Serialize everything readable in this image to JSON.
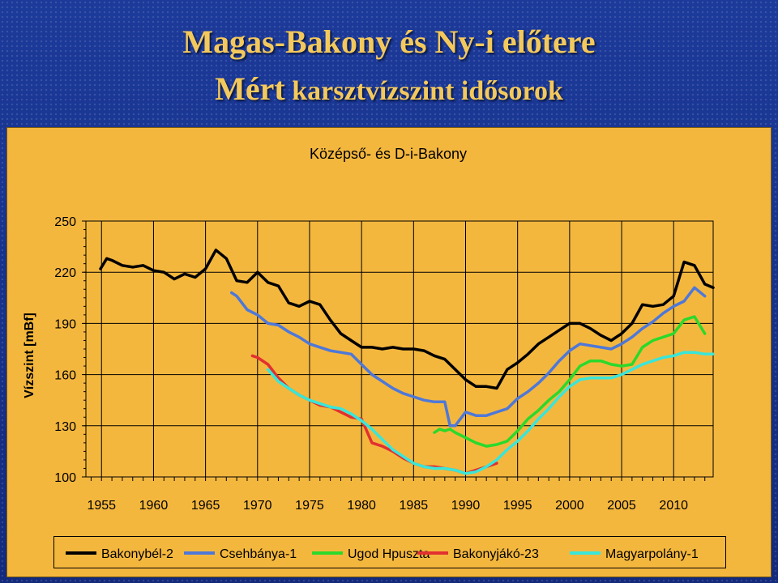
{
  "slide": {
    "title_line1": "Magas-Bakony és Ny-i előtere",
    "title_line2_strong": "Mért",
    "title_line2_rest": " karsztvízszint idősorok"
  },
  "chart_data": {
    "type": "line",
    "title": "Középső- és D-i-Bakony",
    "ylabel": "Vízszint [mBf]",
    "xlabel": "",
    "xlim": [
      1953.5,
      2013.8
    ],
    "ylim": [
      100,
      250
    ],
    "x_ticks": [
      "1955",
      "1960",
      "1965",
      "1970",
      "1975",
      "1980",
      "1985",
      "1990",
      "1995",
      "2000",
      "2005",
      "2010"
    ],
    "y_ticks": [
      "250",
      "220",
      "190",
      "160",
      "130",
      "100"
    ],
    "grid": true,
    "legend_position": "bottom",
    "series": [
      {
        "name": "Bakonybél-2",
        "color": "#000000",
        "x": [
          1954.9,
          1955.5,
          1956,
          1957,
          1958,
          1959,
          1960,
          1961,
          1962,
          1963,
          1964,
          1965,
          1966,
          1967,
          1968,
          1969,
          1970,
          1971,
          1972,
          1973,
          1974,
          1975,
          1976,
          1977,
          1978,
          1979,
          1980,
          1981,
          1982,
          1983,
          1984,
          1985,
          1986,
          1987,
          1988,
          1989,
          1990,
          1991,
          1992,
          1993,
          1994,
          1995,
          1996,
          1997,
          1998,
          1999,
          2000,
          2001,
          2002,
          2003,
          2004,
          2005,
          2006,
          2007,
          2008,
          2009,
          2010,
          2011,
          2012,
          2013,
          2013.8
        ],
        "y": [
          222,
          228,
          227,
          224,
          223,
          224,
          221,
          220,
          216,
          219,
          217,
          222,
          233,
          228,
          215,
          214,
          220,
          214,
          212,
          202,
          200,
          203,
          201,
          192,
          184,
          180,
          176,
          176,
          175,
          176,
          175,
          175,
          174,
          171,
          169,
          163,
          157,
          153,
          153,
          152,
          163,
          167,
          172,
          178,
          182,
          186,
          190,
          190,
          187,
          183,
          180,
          184,
          190,
          201,
          200,
          201,
          206,
          226,
          224,
          213,
          211
        ]
      },
      {
        "name": "Csehbánya-1",
        "color": "#4e78d8",
        "x": [
          1967.5,
          1968,
          1969,
          1970,
          1971,
          1972,
          1973,
          1974,
          1975,
          1976,
          1977,
          1978,
          1979,
          1980,
          1981,
          1982,
          1983,
          1984,
          1985,
          1986,
          1987,
          1988,
          1988.5,
          1989,
          1990,
          1991,
          1992,
          1993,
          1994,
          1995,
          1996,
          1997,
          1998,
          1999,
          2000,
          2001,
          2002,
          2003,
          2004,
          2005,
          2006,
          2007,
          2008,
          2009,
          2010,
          2011,
          2012,
          2013
        ],
        "y": [
          208,
          206,
          198,
          195,
          190,
          189,
          185,
          182,
          178,
          176,
          174,
          173,
          172,
          166,
          160,
          156,
          152,
          149,
          147,
          145,
          144,
          144,
          130,
          130,
          138,
          136,
          136,
          138,
          140,
          146,
          150,
          155,
          161,
          168,
          174,
          178,
          177,
          176,
          175,
          178,
          182,
          187,
          191,
          196,
          200,
          203,
          211,
          206
        ]
      },
      {
        "name": "Ugod Hpuszta",
        "color": "#2bd92b",
        "x": [
          1987,
          1987.5,
          1988,
          1988.5,
          1989,
          1990,
          1991,
          1992,
          1993,
          1994,
          1995,
          1996,
          1997,
          1998,
          1999,
          2000,
          2001,
          2002,
          2003,
          2004,
          2005,
          2006,
          2007,
          2008,
          2009,
          2010,
          2011,
          2012,
          2013
        ],
        "y": [
          126,
          128,
          127,
          128,
          126,
          123,
          120,
          118,
          119,
          121,
          127,
          134,
          139,
          145,
          150,
          157,
          165,
          168,
          168,
          166,
          165,
          166,
          176,
          180,
          182,
          184,
          192,
          194,
          184
        ]
      },
      {
        "name": "Bakonyjákó-23",
        "color": "#e23030",
        "x": [
          1969.5,
          1970,
          1971,
          1972,
          1973,
          1974,
          1975,
          1976,
          1977,
          1978,
          1979,
          1980,
          1981,
          1982,
          1983,
          1984,
          1985,
          1986,
          1987,
          1988,
          1989,
          1990,
          1991,
          1992,
          1993
        ],
        "y": [
          171,
          170,
          166,
          158,
          152,
          148,
          145,
          142,
          141,
          138,
          135,
          134,
          120,
          118,
          115,
          111,
          108,
          106,
          106,
          105,
          104,
          102,
          104,
          106,
          108
        ]
      },
      {
        "name": "Magyarpolány-1",
        "color": "#39e6d9",
        "x": [
          1971,
          1972,
          1973,
          1974,
          1975,
          1976,
          1977,
          1978,
          1979,
          1980,
          1981,
          1982,
          1983,
          1984,
          1985,
          1986,
          1987,
          1988,
          1989,
          1990,
          1991,
          1992,
          1993,
          1994,
          1995,
          1996,
          1997,
          1998,
          1999,
          2000,
          2001,
          2002,
          2003,
          2004,
          2005,
          2006,
          2007,
          2008,
          2009,
          2010,
          2011,
          2012,
          2013,
          2013.8
        ],
        "y": [
          163,
          156,
          152,
          148,
          145,
          143,
          141,
          140,
          137,
          133,
          128,
          122,
          116,
          112,
          108,
          106,
          105,
          105,
          104,
          102,
          103,
          106,
          110,
          116,
          121,
          127,
          134,
          140,
          147,
          153,
          157,
          158,
          158,
          158,
          160,
          163,
          166,
          168,
          170,
          171,
          173,
          173,
          172,
          172
        ]
      }
    ]
  }
}
